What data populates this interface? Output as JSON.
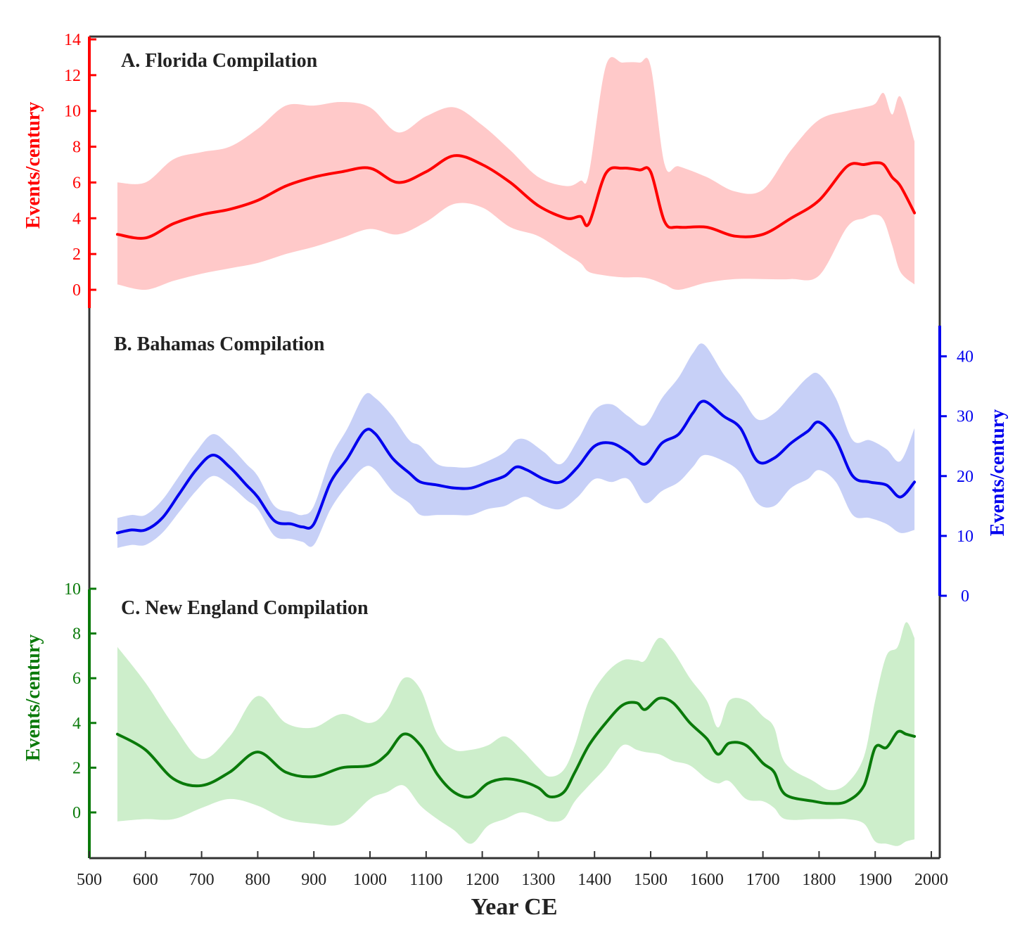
{
  "figure": {
    "xlabel": "Year CE",
    "xticks": [
      500,
      600,
      700,
      800,
      900,
      1000,
      1100,
      1200,
      1300,
      1400,
      1500,
      1600,
      1700,
      1800,
      1900,
      2000
    ],
    "xlim": [
      500,
      2015
    ]
  },
  "chart_data": [
    {
      "type": "line",
      "panel": "A",
      "title": "A. Florida Compilation",
      "ylabel": "Events/century",
      "ylim": [
        -1,
        14
      ],
      "yticks": [
        0,
        2,
        4,
        6,
        8,
        10,
        12,
        14
      ],
      "color": "#ff0000",
      "band_color": "#ffc9c9",
      "x": [
        550,
        600,
        650,
        700,
        750,
        800,
        850,
        900,
        950,
        1000,
        1050,
        1100,
        1150,
        1200,
        1250,
        1300,
        1350,
        1375,
        1390,
        1420,
        1450,
        1480,
        1500,
        1525,
        1550,
        1600,
        1650,
        1700,
        1750,
        1800,
        1850,
        1880,
        1900,
        1915,
        1930,
        1945,
        1970
      ],
      "y": [
        3.1,
        2.9,
        3.7,
        4.2,
        4.5,
        5.0,
        5.8,
        6.3,
        6.6,
        6.8,
        6.0,
        6.6,
        7.5,
        7.0,
        6.0,
        4.7,
        4.0,
        4.1,
        3.7,
        6.5,
        6.8,
        6.7,
        6.6,
        3.8,
        3.5,
        3.5,
        3.0,
        3.1,
        4.0,
        5.0,
        6.9,
        7.0,
        7.1,
        7.0,
        6.3,
        5.8,
        4.3
      ],
      "upper": [
        6.0,
        6.0,
        7.3,
        7.7,
        8.0,
        9.0,
        10.3,
        10.3,
        10.5,
        10.2,
        8.8,
        9.7,
        10.2,
        9.2,
        7.8,
        6.3,
        5.8,
        6.1,
        6.5,
        12.5,
        12.7,
        12.7,
        12.5,
        7.0,
        6.9,
        6.3,
        5.5,
        5.6,
        7.8,
        9.5,
        10.0,
        10.2,
        10.4,
        11.0,
        9.8,
        10.8,
        8.3
      ],
      "lower": [
        0.3,
        0.0,
        0.5,
        0.9,
        1.2,
        1.5,
        2.0,
        2.4,
        2.9,
        3.4,
        3.1,
        3.8,
        4.8,
        4.6,
        3.5,
        3.0,
        2.0,
        1.5,
        1.0,
        0.8,
        0.7,
        0.7,
        0.6,
        0.3,
        0.0,
        0.4,
        0.6,
        0.6,
        0.6,
        0.8,
        3.5,
        4.0,
        4.2,
        3.9,
        2.5,
        1.0,
        0.3
      ]
    },
    {
      "type": "line",
      "panel": "B",
      "title": "B. Bahamas Compilation",
      "ylabel": "Events/century",
      "ylim": [
        0,
        45
      ],
      "yticks": [
        0,
        10,
        20,
        30,
        40
      ],
      "color": "#0000ee",
      "band_color": "#c7d0f7",
      "x": [
        550,
        575,
        600,
        630,
        660,
        690,
        720,
        750,
        780,
        800,
        830,
        860,
        880,
        900,
        930,
        960,
        990,
        1010,
        1040,
        1070,
        1090,
        1120,
        1150,
        1180,
        1210,
        1240,
        1260,
        1280,
        1310,
        1340,
        1370,
        1400,
        1430,
        1460,
        1490,
        1520,
        1550,
        1575,
        1595,
        1630,
        1660,
        1690,
        1720,
        1750,
        1780,
        1800,
        1830,
        1860,
        1890,
        1920,
        1945,
        1970
      ],
      "y": [
        10.5,
        11.0,
        11.0,
        13.0,
        17.0,
        21.0,
        23.5,
        21.5,
        18.5,
        16.5,
        12.5,
        12.0,
        11.5,
        12.0,
        19.0,
        23.0,
        27.5,
        27.0,
        23.0,
        20.5,
        19.0,
        18.5,
        18.0,
        18.0,
        19.0,
        20.0,
        21.5,
        21.0,
        19.5,
        19.0,
        21.5,
        25.0,
        25.5,
        24.0,
        22.0,
        25.5,
        27.0,
        30.5,
        32.5,
        30.0,
        28.0,
        22.5,
        23.0,
        25.5,
        27.5,
        29.0,
        26.0,
        20.0,
        19.0,
        18.5,
        16.5,
        19.0
      ],
      "upper": [
        13.0,
        13.5,
        13.5,
        16.0,
        20.0,
        24.0,
        27.0,
        25.0,
        22.0,
        20.0,
        15.0,
        14.0,
        13.5,
        15.0,
        23.0,
        28.0,
        33.5,
        33.0,
        30.0,
        26.0,
        25.0,
        22.0,
        21.5,
        21.5,
        22.5,
        24.0,
        26.0,
        26.0,
        24.0,
        22.0,
        26.0,
        31.0,
        32.0,
        30.0,
        28.5,
        33.0,
        36.5,
        40.5,
        42.0,
        37.0,
        33.5,
        29.5,
        30.5,
        33.5,
        36.5,
        37.0,
        33.0,
        26.0,
        26.0,
        24.5,
        22.5,
        28.0
      ],
      "lower": [
        8.0,
        8.5,
        8.5,
        10.5,
        14.0,
        17.5,
        20.0,
        18.5,
        16.0,
        14.5,
        10.0,
        9.5,
        9.0,
        8.5,
        14.5,
        18.5,
        21.5,
        21.0,
        17.5,
        15.5,
        13.5,
        13.5,
        13.5,
        13.5,
        14.5,
        15.0,
        16.0,
        16.5,
        15.0,
        14.5,
        16.5,
        19.5,
        19.0,
        19.5,
        15.5,
        17.5,
        19.0,
        21.5,
        23.5,
        22.5,
        20.5,
        15.5,
        15.0,
        18.0,
        19.5,
        21.0,
        19.0,
        13.5,
        13.0,
        12.0,
        10.5,
        11.0
      ]
    },
    {
      "type": "line",
      "panel": "C",
      "title": "C. New England Compilation",
      "ylabel": "Events/century",
      "ylim": [
        -2,
        10
      ],
      "yticks": [
        0,
        2,
        4,
        6,
        8,
        10
      ],
      "color": "#0a7a0a",
      "band_color": "#cdeecb",
      "x": [
        550,
        600,
        650,
        700,
        750,
        800,
        850,
        900,
        950,
        1000,
        1030,
        1060,
        1090,
        1120,
        1150,
        1180,
        1210,
        1240,
        1270,
        1300,
        1320,
        1345,
        1365,
        1390,
        1420,
        1450,
        1475,
        1490,
        1515,
        1540,
        1570,
        1600,
        1620,
        1640,
        1670,
        1700,
        1720,
        1740,
        1790,
        1820,
        1850,
        1880,
        1900,
        1920,
        1940,
        1955,
        1970
      ],
      "y": [
        3.5,
        2.8,
        1.5,
        1.2,
        1.8,
        2.7,
        1.8,
        1.6,
        2.0,
        2.1,
        2.6,
        3.5,
        3.0,
        1.7,
        0.9,
        0.7,
        1.3,
        1.5,
        1.4,
        1.1,
        0.7,
        0.9,
        1.8,
        3.0,
        4.0,
        4.8,
        4.9,
        4.6,
        5.1,
        4.9,
        4.0,
        3.3,
        2.6,
        3.1,
        3.0,
        2.2,
        1.8,
        0.8,
        0.5,
        0.4,
        0.5,
        1.2,
        2.9,
        2.9,
        3.6,
        3.5,
        3.4
      ],
      "upper": [
        7.4,
        5.8,
        3.9,
        2.4,
        3.4,
        5.2,
        4.0,
        3.8,
        4.4,
        4.0,
        4.6,
        6.0,
        5.5,
        3.5,
        2.8,
        2.8,
        3.0,
        3.4,
        2.8,
        2.0,
        1.6,
        1.9,
        3.0,
        5.0,
        6.2,
        6.8,
        6.8,
        6.8,
        7.8,
        7.2,
        6.0,
        5.0,
        3.8,
        5.0,
        5.0,
        4.3,
        3.8,
        2.2,
        1.4,
        1.0,
        1.3,
        2.5,
        5.0,
        7.0,
        7.4,
        8.5,
        7.8
      ],
      "lower": [
        -0.4,
        -0.3,
        -0.3,
        0.2,
        0.6,
        0.3,
        -0.3,
        -0.5,
        -0.5,
        0.6,
        0.9,
        1.2,
        0.3,
        -0.3,
        -0.8,
        -1.4,
        -0.6,
        -0.3,
        0.0,
        -0.2,
        -0.4,
        -0.3,
        0.5,
        1.2,
        2.0,
        3.0,
        2.8,
        2.7,
        2.6,
        2.3,
        2.1,
        1.5,
        1.3,
        1.4,
        0.6,
        0.5,
        0.2,
        -0.3,
        -0.3,
        -0.3,
        -0.3,
        -0.5,
        -1.3,
        -1.4,
        -1.5,
        -1.3,
        -1.2
      ]
    }
  ]
}
